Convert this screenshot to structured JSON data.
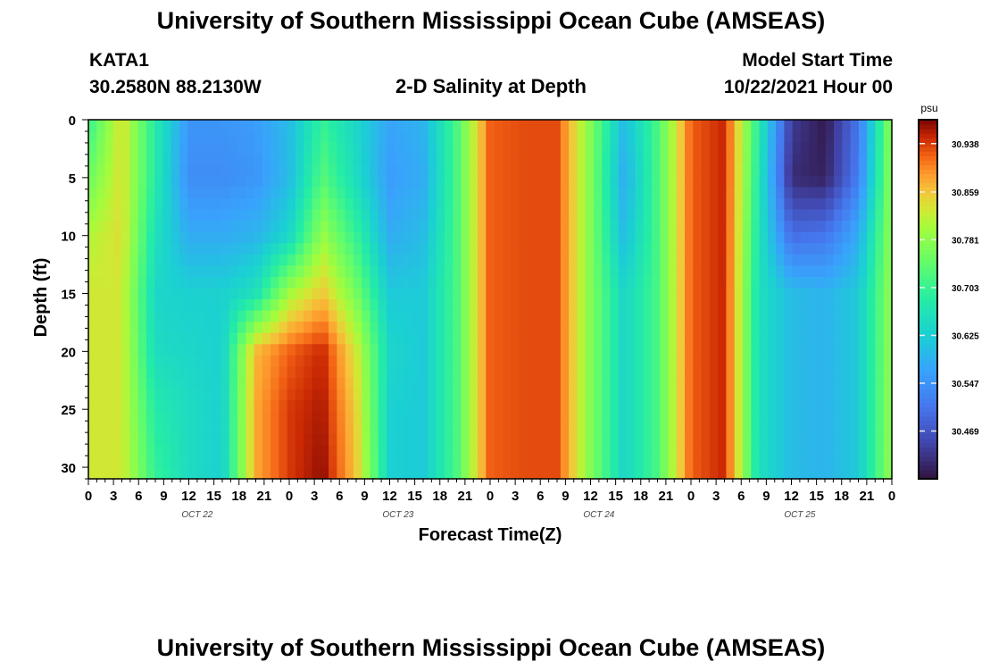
{
  "header": {
    "title": "University of Southern Mississippi Ocean Cube (AMSEAS)",
    "station": "KATA1",
    "coords": "30.2580N  88.2130W",
    "plot_title": "2-D Salinity at Depth",
    "model_start_label": "Model Start Time",
    "model_start_value": "10/22/2021 Hour 00"
  },
  "footer": {
    "title": "University of Southern Mississippi Ocean Cube (AMSEAS)"
  },
  "chart_data": {
    "type": "heatmap",
    "title": "2-D Salinity at Depth",
    "xlabel": "Forecast Time(Z)",
    "ylabel": "Depth (ft)",
    "colorbar_label": "psu",
    "x_tick_labels": [
      "0",
      "3",
      "6",
      "9",
      "12",
      "15",
      "18",
      "21",
      "0",
      "3",
      "6",
      "9",
      "12",
      "15",
      "18",
      "21",
      "0",
      "3",
      "6",
      "9",
      "12",
      "15",
      "18",
      "21",
      "0",
      "3",
      "6",
      "9",
      "12",
      "15",
      "18",
      "21",
      "0"
    ],
    "x_range_hours": [
      0,
      96
    ],
    "date_labels": [
      {
        "label": "OCT 22",
        "hour": 13
      },
      {
        "label": "OCT 23",
        "hour": 37
      },
      {
        "label": "OCT 24",
        "hour": 61
      },
      {
        "label": "OCT 25",
        "hour": 85
      }
    ],
    "y_ticks": [
      "0",
      "5",
      "10",
      "15",
      "20",
      "25",
      "30"
    ],
    "y_range_ft": [
      0,
      31
    ],
    "y_inverted": true,
    "colorbar_ticks": [
      "30.938",
      "30.859",
      "30.781",
      "30.703",
      "30.625",
      "30.547",
      "30.469"
    ],
    "colorbar_tick_values": [
      30.938,
      30.859,
      30.781,
      30.703,
      30.625,
      30.547,
      30.469
    ],
    "colorbar_range": [
      30.391,
      30.977
    ],
    "colors": {
      "low": "#30123b",
      "high": "#7a0403"
    },
    "salinity_grid": {
      "hours": [
        0,
        4,
        8,
        12,
        16,
        20,
        24,
        28,
        32,
        36,
        40,
        44,
        48,
        52,
        56,
        60,
        64,
        68,
        72,
        76,
        80,
        84,
        88,
        92,
        96
      ],
      "depths_ft": [
        0,
        5,
        10,
        15,
        20,
        25,
        31
      ],
      "values": [
        [
          30.7,
          30.84,
          30.68,
          30.55,
          30.55,
          30.56,
          30.6,
          30.7,
          30.64,
          30.57,
          30.59,
          30.72,
          30.92,
          30.93,
          30.93,
          30.77,
          30.6,
          30.72,
          30.92,
          30.95,
          30.69,
          30.44,
          30.4,
          30.51,
          30.79
        ],
        [
          30.75,
          30.84,
          30.68,
          30.54,
          30.54,
          30.55,
          30.6,
          30.73,
          30.65,
          30.56,
          30.58,
          30.72,
          30.92,
          30.93,
          30.93,
          30.77,
          30.58,
          30.72,
          30.92,
          30.95,
          30.68,
          30.42,
          30.41,
          30.52,
          30.79
        ],
        [
          30.81,
          30.84,
          30.66,
          30.58,
          30.58,
          30.59,
          30.64,
          30.79,
          30.7,
          30.58,
          30.6,
          30.72,
          30.92,
          30.93,
          30.93,
          30.77,
          30.6,
          30.72,
          30.92,
          30.95,
          30.67,
          30.5,
          30.51,
          30.58,
          30.79
        ],
        [
          30.83,
          30.83,
          30.64,
          30.63,
          30.63,
          30.66,
          30.8,
          30.86,
          30.76,
          30.62,
          30.62,
          30.72,
          30.92,
          30.93,
          30.93,
          30.77,
          30.64,
          30.72,
          30.92,
          30.95,
          30.66,
          30.6,
          30.59,
          30.62,
          30.79
        ],
        [
          30.83,
          30.83,
          30.65,
          30.64,
          30.63,
          30.87,
          30.92,
          30.95,
          30.83,
          30.64,
          30.62,
          30.72,
          30.92,
          30.93,
          30.93,
          30.77,
          30.64,
          30.72,
          30.92,
          30.95,
          30.66,
          30.6,
          30.59,
          30.62,
          30.79
        ],
        [
          30.83,
          30.83,
          30.68,
          30.65,
          30.63,
          30.88,
          30.94,
          30.96,
          30.85,
          30.63,
          30.62,
          30.72,
          30.92,
          30.93,
          30.93,
          30.77,
          30.64,
          30.72,
          30.92,
          30.95,
          30.66,
          30.6,
          30.59,
          30.62,
          30.79
        ],
        [
          30.83,
          30.83,
          30.7,
          30.65,
          30.63,
          30.88,
          30.94,
          30.97,
          30.86,
          30.63,
          30.62,
          30.72,
          30.92,
          30.93,
          30.93,
          30.77,
          30.64,
          30.72,
          30.92,
          30.95,
          30.66,
          30.6,
          30.59,
          30.62,
          30.79
        ]
      ]
    }
  }
}
